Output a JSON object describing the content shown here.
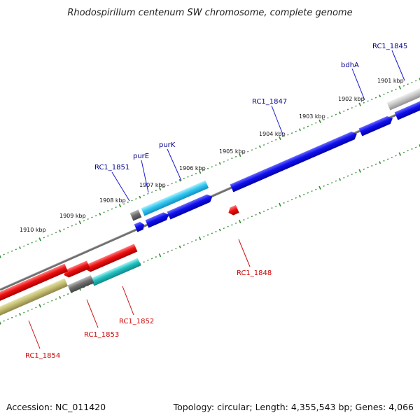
{
  "title": "Rhodospirillum centenum SW chromosome, complete genome",
  "footer": {
    "accession": "Accession: NC_011420",
    "topology": "Topology: circular; Length: 4,355,543 bp; Genes: 4,066"
  },
  "colors": {
    "forward_label": "#00008B",
    "reverse_label": "#CC0000",
    "tick_green": "#2E8B2E",
    "backbone": "#777777"
  },
  "kbp_labels": [
    "1901 kbp",
    "1902 kbp",
    "1903 kbp",
    "1904 kbp",
    "1905 kbp",
    "1906 kbp",
    "1907 kbp",
    "1908 kbp",
    "1909 kbp",
    "1910 kbp"
  ],
  "forward_genes": [
    "RC1_1845",
    "bdhA",
    "RC1_1847",
    "purK",
    "purE",
    "RC1_1851"
  ],
  "reverse_genes": [
    "RC1_1848",
    "RC1_1852",
    "RC1_1853",
    "RC1_1854"
  ]
}
